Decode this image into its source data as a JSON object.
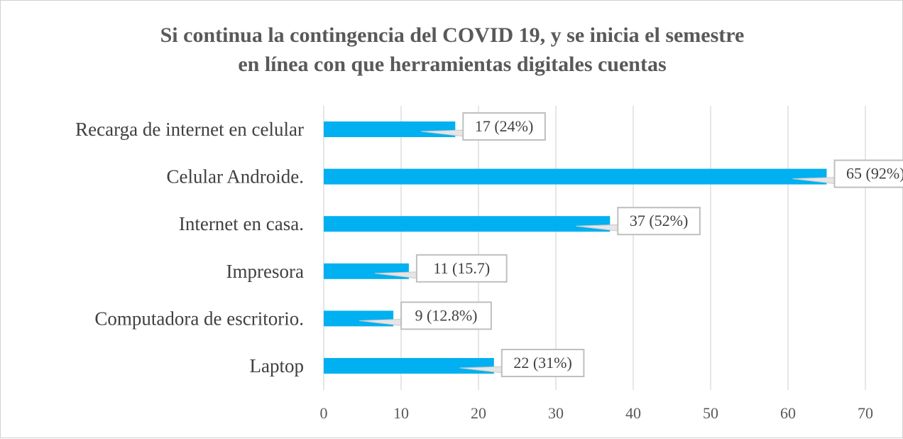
{
  "chart_data": {
    "type": "bar",
    "orientation": "horizontal",
    "title": "Si continua la contingencia del COVID 19, y se inicia  el semestre\nen línea con que herramientas digitales  cuentas",
    "categories": [
      "Recarga de internet en  celular",
      "Celular Androide.",
      "Internet en casa.",
      "Impresora",
      "Computadora de escritorio.",
      "Laptop"
    ],
    "values": [
      17,
      65,
      37,
      11,
      9,
      22
    ],
    "data_labels": [
      "17 (24%)",
      "65 (92%)",
      "37 (52%)",
      "11 (15.7)",
      "9 (12.8%)",
      "22 (31%)"
    ],
    "xlim": [
      0,
      70
    ],
    "xticks": [
      0,
      10,
      20,
      30,
      40,
      50,
      60,
      70
    ],
    "xlabel": "",
    "ylabel": "",
    "grid": "vertical",
    "legend": "none",
    "bar_color": "#00B0F0"
  }
}
